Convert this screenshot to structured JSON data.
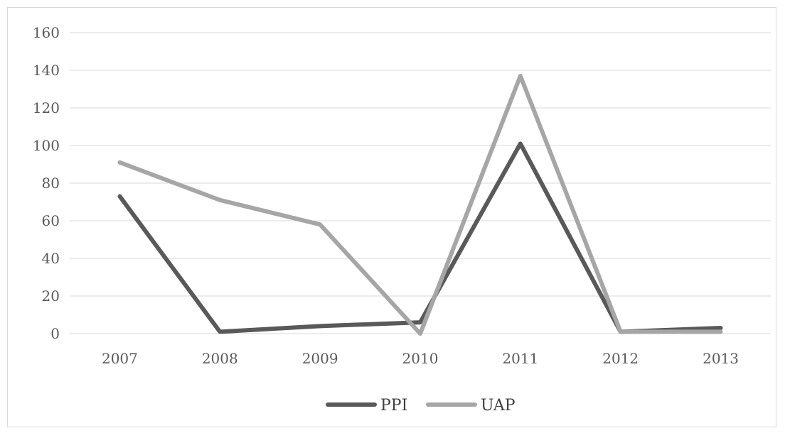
{
  "chart_data": {
    "type": "line",
    "title": "",
    "xlabel": "",
    "ylabel": "",
    "categories": [
      "2007",
      "2008",
      "2009",
      "2010",
      "2011",
      "2012",
      "2013"
    ],
    "ylim": [
      0,
      160
    ],
    "yticks": [
      0,
      20,
      40,
      60,
      80,
      100,
      120,
      140,
      160
    ],
    "grid": true,
    "legend_position": "bottom",
    "series": [
      {
        "name": "PPI",
        "values": [
          73,
          1,
          4,
          6,
          101,
          1,
          3
        ],
        "color": "#595959"
      },
      {
        "name": "UAP",
        "values": [
          91,
          71,
          58,
          0,
          137,
          1,
          1
        ],
        "color": "#a6a6a6"
      }
    ]
  }
}
